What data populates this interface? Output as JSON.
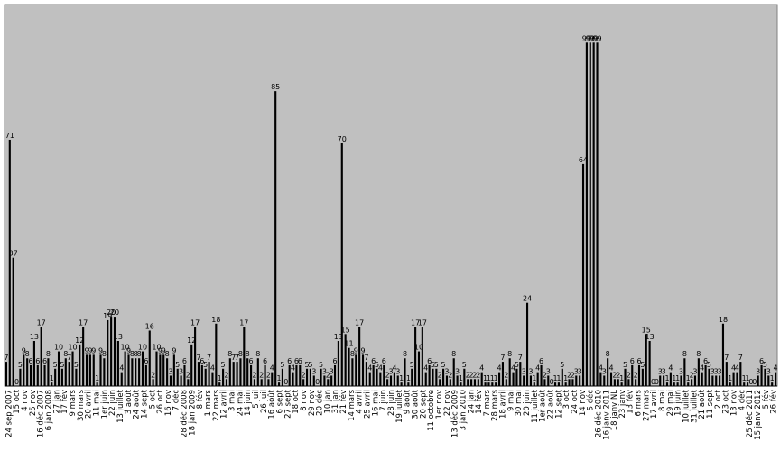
{
  "chart_data": {
    "type": "bar",
    "title": "",
    "xlabel": "",
    "ylabel": "",
    "ylim": [
      0,
      110
    ],
    "grid": false,
    "legend": "none",
    "bar_color": "#000000",
    "plot_background": "#c0c0c0",
    "values": [
      7,
      71,
      37,
      0,
      5,
      9,
      8,
      6,
      13,
      6,
      17,
      6,
      8,
      1,
      5,
      10,
      5,
      8,
      7,
      10,
      5,
      12,
      17,
      9,
      9,
      9,
      1,
      9,
      8,
      19,
      20,
      20,
      13,
      4,
      10,
      9,
      8,
      8,
      8,
      10,
      6,
      16,
      2,
      10,
      9,
      9,
      8,
      3,
      9,
      5,
      3,
      6,
      2,
      12,
      17,
      7,
      6,
      5,
      7,
      4,
      18,
      1,
      5,
      2,
      8,
      7,
      7,
      8,
      17,
      8,
      6,
      2,
      8,
      2,
      6,
      2,
      4,
      85,
      1,
      5,
      0,
      6,
      4,
      6,
      6,
      2,
      5,
      5,
      3,
      0,
      5,
      3,
      2,
      3,
      6,
      13,
      70,
      15,
      11,
      8,
      9,
      17,
      9,
      7,
      4,
      6,
      5,
      4,
      6,
      2,
      3,
      4,
      3,
      1,
      8,
      1,
      5,
      17,
      10,
      17,
      4,
      6,
      5,
      5,
      2,
      5,
      3,
      2,
      8,
      3,
      1,
      5,
      2,
      2,
      2,
      2,
      4,
      1,
      1,
      1,
      1,
      4,
      7,
      2,
      8,
      4,
      5,
      7,
      3,
      24,
      3,
      1,
      4,
      6,
      2,
      3,
      0,
      1,
      1,
      5,
      1,
      2,
      2,
      3,
      3,
      64,
      99,
      99,
      99,
      99,
      4,
      3,
      8,
      4,
      2,
      2,
      1,
      5,
      2,
      6,
      2,
      6,
      5,
      15,
      13,
      0,
      0,
      3,
      3,
      1,
      4,
      1,
      1,
      3,
      8,
      1,
      2,
      3,
      8,
      4,
      6,
      5,
      3,
      3,
      3,
      18,
      7,
      1,
      4,
      4,
      7,
      1,
      1,
      0,
      0,
      3,
      6,
      5,
      3,
      1,
      4
    ]
  },
  "xaxis": {
    "tick_labels": [
      "24 sep 2007",
      "15 oct",
      "4 nov",
      "25 nov",
      "16 déc 2007",
      "6 jan 2008",
      "27 jan",
      "17 fév",
      "9 mars",
      "30 mars",
      "20 avril",
      "11 mai",
      "1er juin",
      "22 juin",
      "13 juillet",
      "3 août",
      "24 août",
      "14 sept",
      "5 oct",
      "26 oct",
      "16 nov",
      "7 déc",
      "28 déc 2008",
      "18 jan 2009",
      "8 fév",
      "1 mars",
      "22 mars",
      "12 avril",
      "3 mai",
      "24 mai",
      "14 juin",
      "5 juil",
      "26 juil",
      "16 août",
      "6 sept",
      "27 sept",
      "18 oct",
      "8 nov",
      "29 nov",
      "20 déc",
      "10 jan",
      "31 jan",
      "21 fév",
      "14 mars",
      "4 avril",
      "25 avril",
      "16 mai",
      "7 juin",
      "28 juin",
      "19 juillet",
      "9 août",
      "30 août",
      "20 sept",
      "11 octobre",
      "1er nov",
      "22 nov",
      "13 déc 2009",
      "3 jan 2010",
      "24 jan",
      "14 fév",
      "7 mars",
      "28 mars",
      "18 avril",
      "9 mai",
      "30 mai",
      "20 juin",
      "11 juillet",
      "1er août",
      "22 août",
      "12 sept",
      "3 oct",
      "24 oct",
      "14 nov",
      "5 déc",
      "26 déc 2010",
      "16 janv 2011",
      "18 janv NL",
      "23 janv",
      "13 fév",
      "6 mars",
      "27 mars",
      "17 avril",
      "8 mai",
      "29 mai",
      "19 juin",
      "10 juillet",
      "31 juillet",
      "21 août",
      "11 sept",
      "2 oct",
      "23 oct",
      "13 nov",
      "4 déc",
      "25 déc 2011",
      "15 janv 2012",
      "5 fév",
      "26 fév"
    ]
  }
}
